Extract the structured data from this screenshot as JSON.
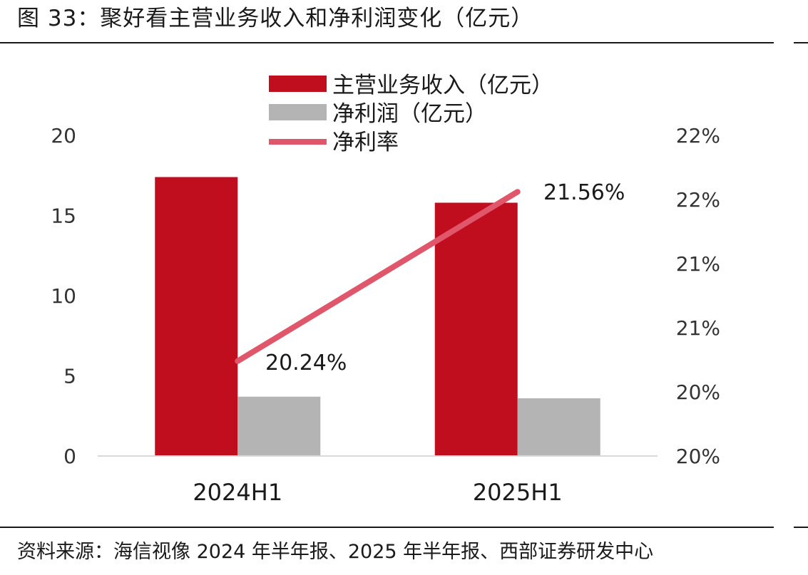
{
  "figure": {
    "title": "图 33：聚好看主营业务收入和净利润变化（亿元）",
    "source": "资料来源：海信视像 2024 年半年报、2025 年半年报、西部证券研发中心"
  },
  "chart_data": {
    "type": "bar",
    "categories": [
      "2024H1",
      "2025H1"
    ],
    "series": [
      {
        "name": "主营业务收入（亿元）",
        "type": "bar",
        "axis": "left",
        "color": "#C00E1F",
        "values": [
          17.4,
          15.8
        ]
      },
      {
        "name": "净利润（亿元）",
        "type": "bar",
        "axis": "left",
        "color": "#B4B4B4",
        "values": [
          3.7,
          3.6
        ]
      },
      {
        "name": "净利率",
        "type": "line",
        "axis": "right",
        "color": "#E0566A",
        "values": [
          20.24,
          21.56
        ],
        "data_labels": [
          "20.24%",
          "21.56%"
        ]
      }
    ],
    "left_axis": {
      "ylim": [
        0,
        20
      ],
      "ticks": [
        0,
        5,
        10,
        15,
        20
      ]
    },
    "right_axis": {
      "ylim": [
        19.5,
        22.0
      ],
      "ticks": [
        19.5,
        20.0,
        20.5,
        21.0,
        21.5,
        22.0
      ],
      "tick_labels": [
        "20%",
        "20%",
        "21%",
        "21%",
        "22%",
        "22%"
      ]
    },
    "legend_position": "top-center",
    "grid": false
  }
}
